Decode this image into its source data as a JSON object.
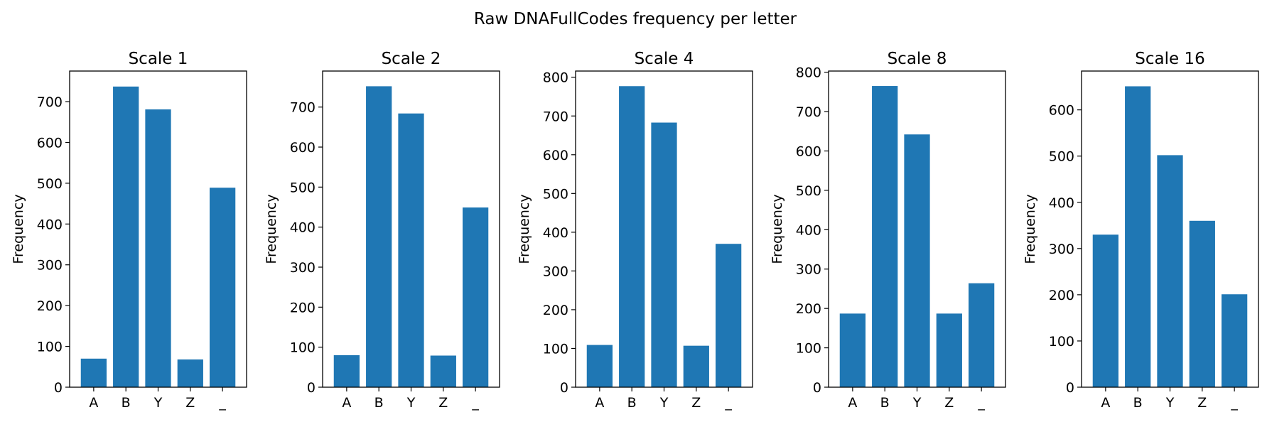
{
  "suptitle": "Raw DNAFullCodes frequency per letter",
  "bar_color": "#1f77b4",
  "chart_data": [
    {
      "type": "bar",
      "title": "Scale 1",
      "ylabel": "Frequency",
      "xlabel": "",
      "categories": [
        "A",
        "B",
        "Y",
        "Z",
        "_"
      ],
      "values": [
        70,
        737,
        681,
        68,
        489
      ],
      "ylim": [
        0,
        775
      ],
      "yticks": [
        0,
        100,
        200,
        300,
        400,
        500,
        600,
        700
      ]
    },
    {
      "type": "bar",
      "title": "Scale 2",
      "ylabel": "Frequency",
      "xlabel": "",
      "categories": [
        "A",
        "B",
        "Y",
        "Z",
        "_"
      ],
      "values": [
        80,
        752,
        684,
        79,
        449
      ],
      "ylim": [
        0,
        790
      ],
      "yticks": [
        0,
        100,
        200,
        300,
        400,
        500,
        600,
        700
      ]
    },
    {
      "type": "bar",
      "title": "Scale 4",
      "ylabel": "Frequency",
      "xlabel": "",
      "categories": [
        "A",
        "B",
        "Y",
        "Z",
        "_"
      ],
      "values": [
        109,
        777,
        683,
        107,
        370
      ],
      "ylim": [
        0,
        816
      ],
      "yticks": [
        0,
        100,
        200,
        300,
        400,
        500,
        600,
        700,
        800
      ]
    },
    {
      "type": "bar",
      "title": "Scale 8",
      "ylabel": "Frequency",
      "xlabel": "",
      "categories": [
        "A",
        "B",
        "Y",
        "Z",
        "_"
      ],
      "values": [
        187,
        765,
        642,
        187,
        264
      ],
      "ylim": [
        0,
        803
      ],
      "yticks": [
        0,
        100,
        200,
        300,
        400,
        500,
        600,
        700,
        800
      ]
    },
    {
      "type": "bar",
      "title": "Scale 16",
      "ylabel": "Frequency",
      "xlabel": "",
      "categories": [
        "A",
        "B",
        "Y",
        "Z",
        "_"
      ],
      "values": [
        330,
        651,
        502,
        360,
        201
      ],
      "ylim": [
        0,
        684
      ],
      "yticks": [
        0,
        100,
        200,
        300,
        400,
        500,
        600
      ]
    }
  ]
}
